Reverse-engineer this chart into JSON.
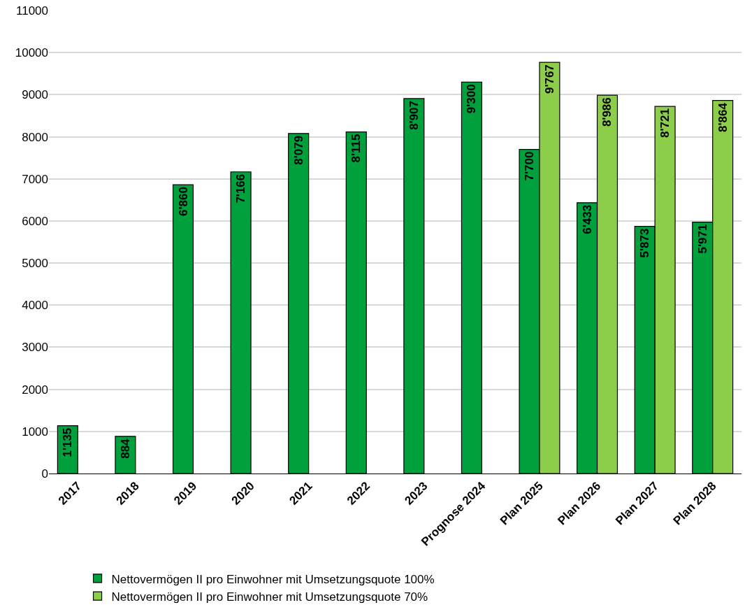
{
  "chart_data": {
    "type": "bar",
    "categories": [
      "2017",
      "2018",
      "2019",
      "2020",
      "2021",
      "2022",
      "2023",
      "Prognose 2024",
      "Plan 2025",
      "Plan 2026",
      "Plan 2027",
      "Plan 2028"
    ],
    "series": [
      {
        "name": "Nettovermögen II pro Einwohner mit Umsetzungsquote 100%",
        "color": "#00a03c",
        "values": [
          1135,
          884,
          6860,
          7166,
          8079,
          8115,
          8907,
          9300,
          7700,
          6433,
          5873,
          5971
        ],
        "value_labels": [
          "1'135",
          "884",
          "6'860",
          "7'166",
          "8'079",
          "8'115",
          "8'907",
          "9'300",
          "7'700",
          "6'433",
          "5'873",
          "5'971"
        ]
      },
      {
        "name": "Nettovermögen II pro Einwohner mit Umsetzungsquote 70%",
        "color": "#8ccd4a",
        "values": [
          null,
          null,
          null,
          null,
          null,
          null,
          null,
          null,
          9767,
          8986,
          8721,
          8864
        ],
        "value_labels": [
          null,
          null,
          null,
          null,
          null,
          null,
          null,
          null,
          "9'767",
          "8'986",
          "8'721",
          "8'864"
        ]
      }
    ],
    "ylim": [
      0,
      11000
    ],
    "yticks": [
      0,
      1000,
      2000,
      3000,
      4000,
      5000,
      6000,
      7000,
      8000,
      9000,
      10000,
      11000
    ],
    "grid": "y",
    "legend": "bottom left"
  }
}
